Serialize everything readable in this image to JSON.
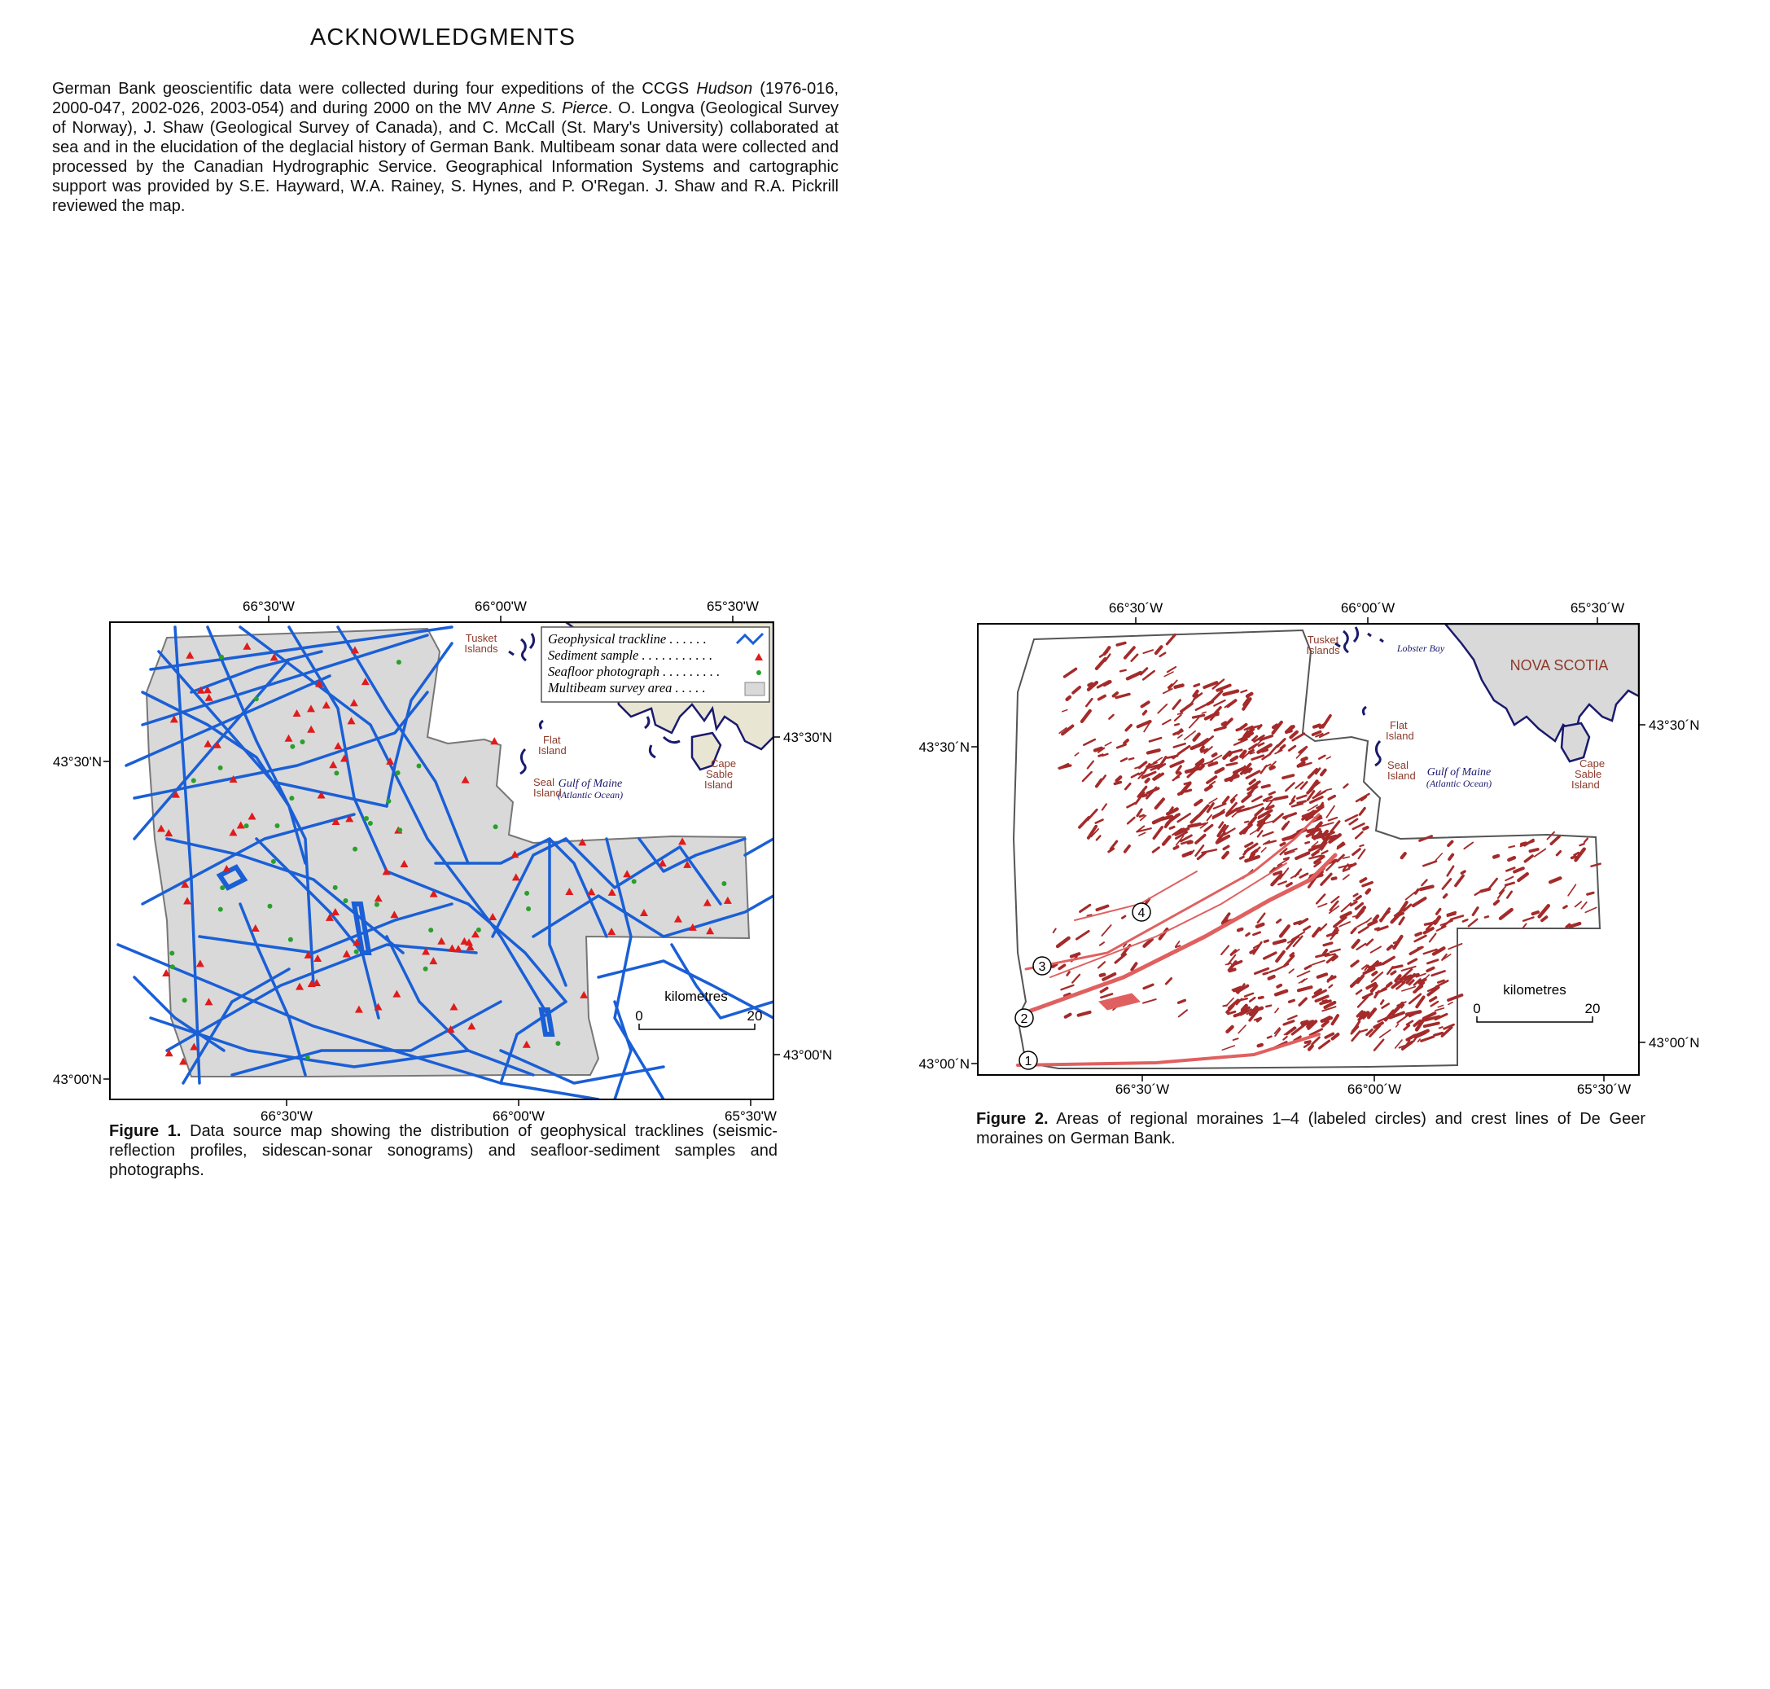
{
  "acknowledgments": {
    "heading": "ACKNOWLEDGMENTS",
    "p1": "German Bank geoscientific data were collected during four expeditions of the CCGS ",
    "ship1": "Hudson",
    "p2": " (1976-016, 2000-047, 2002-026, 2003-054) and during 2000 on the MV ",
    "ship2": "Anne S. Pierce",
    "p3": ". O. Longva (Geological Survey of Norway), J. Shaw (Geological Survey of Canada), and C. McCall (St. Mary's University) collaborated at sea and in the elucidation of the deglacial history of German Bank. Multibeam sonar data were collected and processed by the Canadian Hydrographic Service. Geographical Information Systems and cartographic support was provided by S.E. Hayward, W.A. Rainey, S. Hynes, and P. O'Regan. J. Shaw and R.A. Pickrill reviewed the map."
  },
  "figure1": {
    "lon_top": [
      "66°30'W",
      "66°00'W",
      "65°30'W"
    ],
    "lon_bottom": [
      "66°30'W",
      "66°00'W",
      "65°30'W"
    ],
    "lat_left": [
      "43°30'N",
      "43°00'N"
    ],
    "lat_right": [
      "43°30'N",
      "43°00'N"
    ],
    "legend": {
      "trackline": "Geophysical trackline . . . . . .",
      "sample": "Sediment sample . . . . . . . . . . .",
      "photo": "Seafloor photograph . . . . . . . . .",
      "multibeam": "Multibeam survey area . . . . ."
    },
    "places": {
      "tusket1": "Tusket",
      "tusket2": "Islands",
      "flat1": "Flat",
      "flat2": "Island",
      "seal1": "Seal",
      "seal2": "Island",
      "cape1": "Cape",
      "cape2": "Sable",
      "cape3": "Island",
      "gulf1": "Gulf of Maine",
      "gulf2": "(Atlantic Ocean)"
    },
    "scale": {
      "label": "kilometres",
      "min": "0",
      "max": "20"
    },
    "caption_label": "Figure 1.",
    "caption_text": " Data source map showing the distribution of geophysical tracklines (seismic-reflection profiles, sidescan-sonar sonograms) and seafloor-sediment samples and photographs.",
    "colors": {
      "track": "#1a5fd6",
      "sample": "#e01b1b",
      "photo": "#2aa02a",
      "survey": "#d9d9d9",
      "land": "#e8e6d2",
      "coast": "#1a1a6e",
      "label": "#8b3a2a"
    }
  },
  "figure2": {
    "lon_top": [
      "66°30´W",
      "66°00´W",
      "65°30´W"
    ],
    "lon_bottom": [
      "66°30´W",
      "66°00´W",
      "65°30´W"
    ],
    "lat_left": [
      "43°30´N",
      "43°00´N"
    ],
    "lat_right": [
      "43°30´N",
      "43°00´N"
    ],
    "places": {
      "nova_scotia": "NOVA SCOTIA",
      "lobster_bay": "Lobster Bay",
      "tusket1": "Tusket",
      "tusket2": "Islands",
      "flat1": "Flat",
      "flat2": "Island",
      "seal1": "Seal",
      "seal2": "Island",
      "cape1": "Cape",
      "cape2": "Sable",
      "cape3": "Island",
      "gulf1": "Gulf of Maine",
      "gulf2": "(Atlantic Ocean)"
    },
    "moraines": [
      "1",
      "2",
      "3",
      "4"
    ],
    "scale": {
      "label": "kilometres",
      "min": "0",
      "max": "20"
    },
    "caption_label": "Figure 2.",
    "caption_text": " Areas of regional moraines 1–4 (labeled circles) and crest lines of De Geer moraines on German Bank.",
    "colors": {
      "moraine": "#a52a2a",
      "ridge": "#e06060",
      "land": "#d9d9d9",
      "coast": "#1a1a6e",
      "label": "#8b3a2a"
    }
  }
}
